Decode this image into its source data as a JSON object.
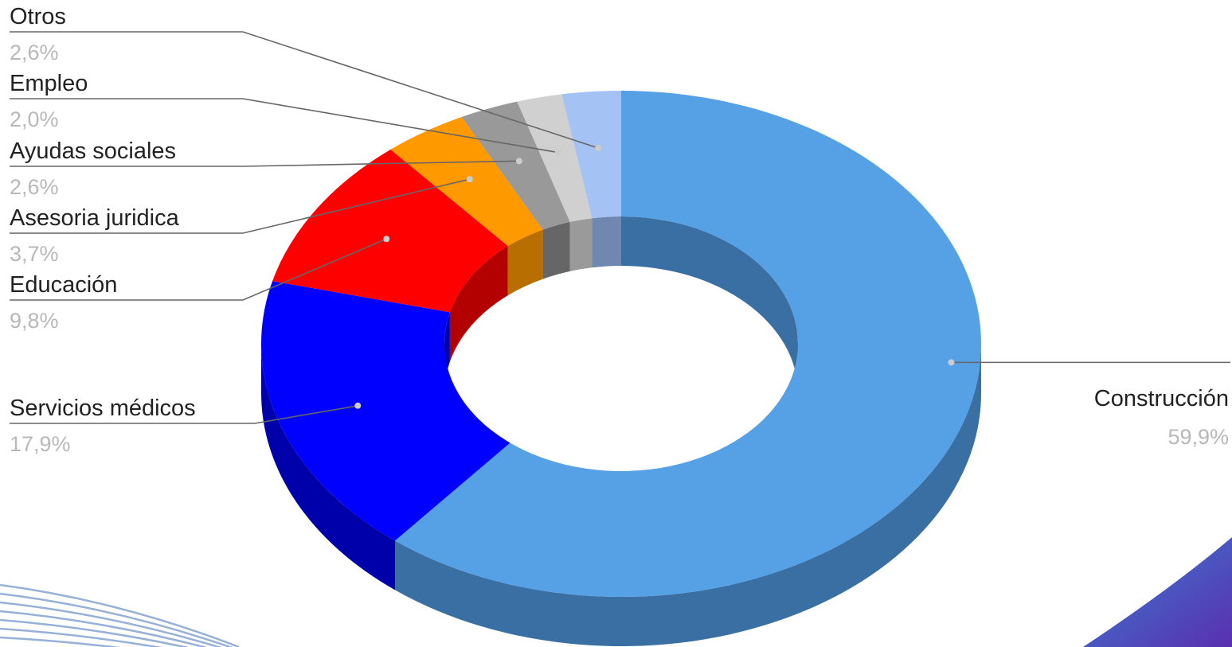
{
  "chart_data": {
    "type": "pie",
    "style": "3d-donut",
    "title": "",
    "legend": "none",
    "slices": [
      {
        "label": "Construcción",
        "value_label": "59,9%",
        "value": 59.9,
        "color": "#56a0e6",
        "side": "#3a6fa3",
        "label_side": "right"
      },
      {
        "label": "Servicios médicos",
        "value_label": "17,9%",
        "value": 17.9,
        "color": "#0000ff",
        "side": "#0000aa",
        "label_side": "left"
      },
      {
        "label": "Educación",
        "value_label": "9,8%",
        "value": 9.8,
        "color": "#ff0000",
        "side": "#b30000",
        "label_side": "left"
      },
      {
        "label": "Asesoria juridica",
        "value_label": "3,7%",
        "value": 3.7,
        "color": "#ff9900",
        "side": "#b86e00",
        "label_side": "left"
      },
      {
        "label": "Ayudas sociales",
        "value_label": "2,6%",
        "value": 2.6,
        "color": "#999999",
        "side": "#666666",
        "label_side": "left"
      },
      {
        "label": "Empleo",
        "value_label": "2,0%",
        "value": 2.0,
        "color": "#d0d0d0",
        "side": "#9a9a9a",
        "label_side": "left"
      },
      {
        "label": "Otros",
        "value_label": "2,6%",
        "value": 2.6,
        "color": "#a4c2f4",
        "side": "#7088b0",
        "label_side": "left"
      }
    ]
  },
  "decor": {
    "stripe_color": "#3f6fb8",
    "corner_color_a": "#3a7fd0",
    "corner_color_b": "#5a2fb0"
  }
}
